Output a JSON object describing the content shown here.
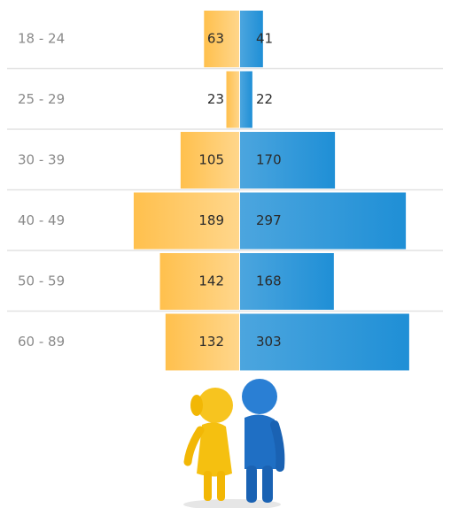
{
  "chart_data": {
    "type": "pyramid",
    "categories": [
      "18 - 24",
      "25 - 29",
      "30 - 39",
      "40 - 49",
      "50 - 59",
      "60 - 89"
    ],
    "series": [
      {
        "color": "#ffc04d",
        "values": [
          63,
          23,
          105,
          189,
          142,
          132
        ]
      },
      {
        "color": "#1f8fd6",
        "values": [
          41,
          22,
          170,
          297,
          168,
          303
        ]
      }
    ]
  }
}
